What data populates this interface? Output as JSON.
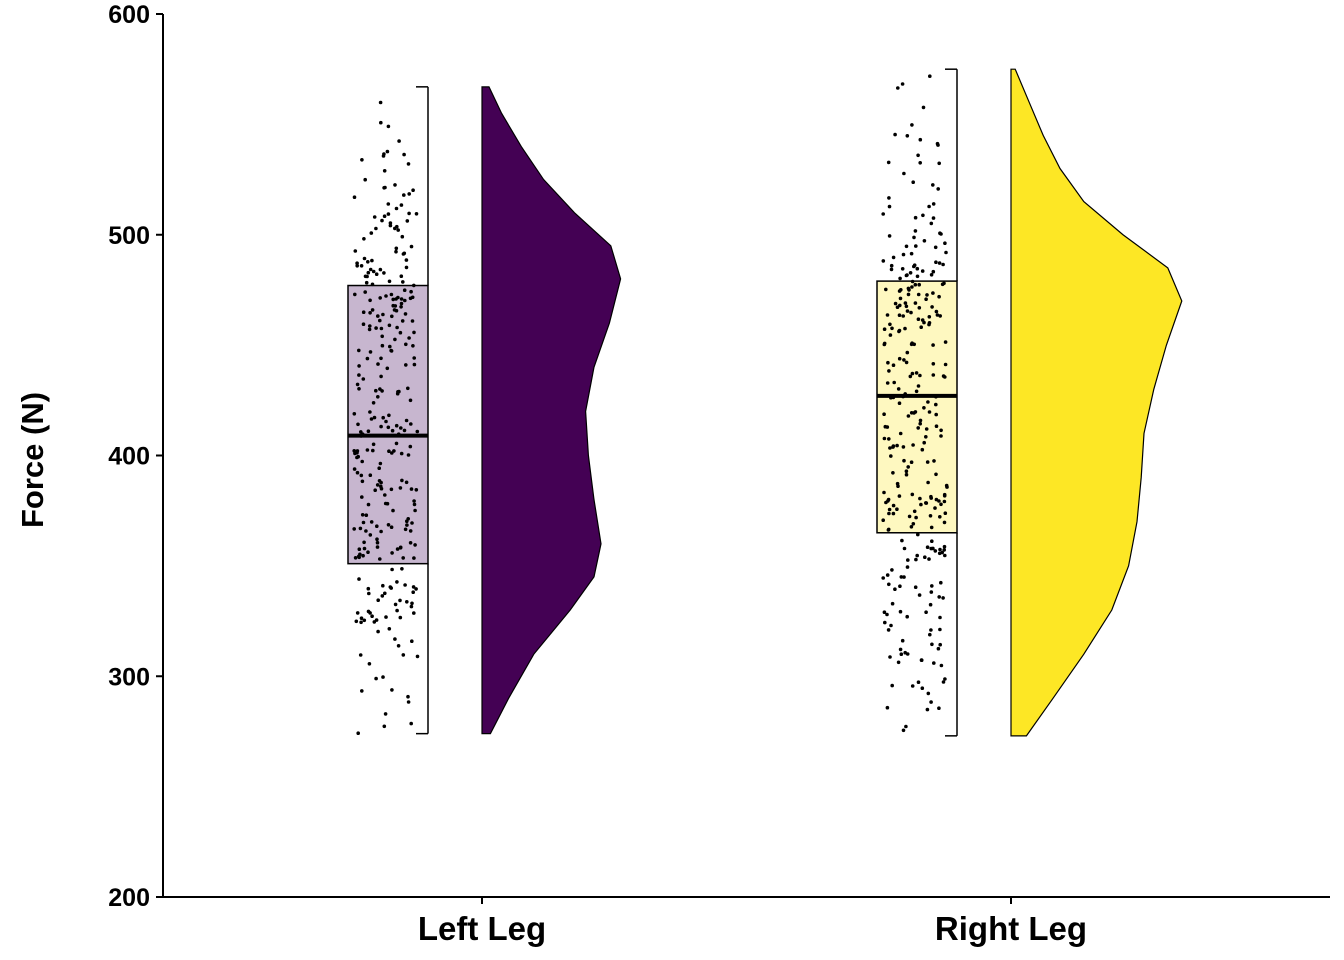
{
  "chart_data": {
    "type": "raincloud",
    "title": "",
    "xlabel": "",
    "ylabel": "Force (N)",
    "ylim": [
      200,
      600
    ],
    "yticks": [
      200,
      300,
      400,
      500,
      600
    ],
    "grid": false,
    "legend": "none",
    "categories": [
      "Left Leg",
      "Right Leg"
    ],
    "groups": [
      {
        "name": "Left Leg",
        "color": "#440154",
        "box_fill": "#c7b6cf",
        "min": 274,
        "q1": 351,
        "median": 409,
        "q3": 477,
        "max": 567,
        "density": [
          [
            274,
            0.06
          ],
          [
            290,
            0.19
          ],
          [
            310,
            0.37
          ],
          [
            330,
            0.63
          ],
          [
            345,
            0.8
          ],
          [
            360,
            0.85
          ],
          [
            380,
            0.8
          ],
          [
            400,
            0.76
          ],
          [
            420,
            0.74
          ],
          [
            440,
            0.8
          ],
          [
            460,
            0.91
          ],
          [
            480,
            0.99
          ],
          [
            495,
            0.92
          ],
          [
            510,
            0.66
          ],
          [
            525,
            0.44
          ],
          [
            540,
            0.28
          ],
          [
            555,
            0.14
          ],
          [
            567,
            0.05
          ]
        ]
      },
      {
        "name": "Right Leg",
        "color": "#fde725",
        "box_fill": "#fef8c0",
        "min": 273,
        "q1": 365,
        "median": 427,
        "q3": 479,
        "max": 575,
        "density": [
          [
            273,
            0.11
          ],
          [
            290,
            0.3
          ],
          [
            310,
            0.52
          ],
          [
            330,
            0.72
          ],
          [
            350,
            0.84
          ],
          [
            370,
            0.9
          ],
          [
            390,
            0.93
          ],
          [
            410,
            0.95
          ],
          [
            430,
            1.02
          ],
          [
            450,
            1.11
          ],
          [
            470,
            1.22
          ],
          [
            485,
            1.12
          ],
          [
            500,
            0.8
          ],
          [
            515,
            0.52
          ],
          [
            530,
            0.35
          ],
          [
            545,
            0.23
          ],
          [
            560,
            0.13
          ],
          [
            575,
            0.03
          ]
        ]
      }
    ]
  }
}
